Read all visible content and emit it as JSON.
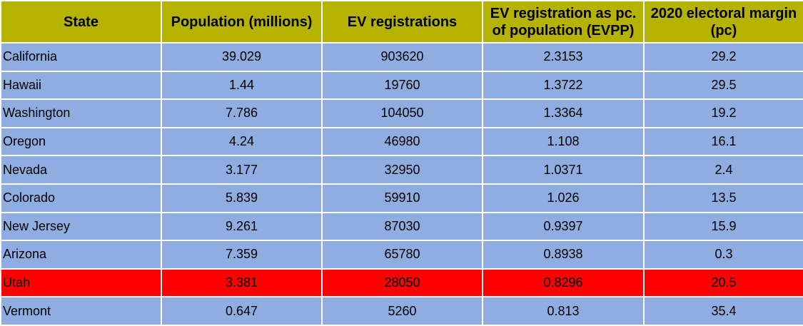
{
  "colors": {
    "header_bg": "#b5b300",
    "row_bg": "#8fade0",
    "highlight_bg": "#ff0000",
    "grid_line": "#ffffff",
    "text": "#000000"
  },
  "chart_data": {
    "type": "table",
    "columns": [
      "State",
      "Population (millions)",
      "EV registrations",
      "EV registration as pc. of population (EVPP)",
      "2020 electoral margin (pc)"
    ],
    "highlighted_row": "Utah",
    "rows": [
      [
        "California",
        "39.029",
        "903620",
        "2.3153",
        "29.2"
      ],
      [
        "Hawaii",
        "1.44",
        "19760",
        "1.3722",
        "29.5"
      ],
      [
        "Washington",
        "7.786",
        "104050",
        "1.3364",
        "19.2"
      ],
      [
        "Oregon",
        "4.24",
        "46980",
        "1.108",
        "16.1"
      ],
      [
        "Nevada",
        "3.177",
        "32950",
        "1.0371",
        "2.4"
      ],
      [
        "Colorado",
        "5.839",
        "59910",
        "1.026",
        "13.5"
      ],
      [
        "New Jersey",
        "9.261",
        "87030",
        "0.9397",
        "15.9"
      ],
      [
        "Arizona",
        "7.359",
        "65780",
        "0.8938",
        "0.3"
      ],
      [
        "Utah",
        "3.381",
        "28050",
        "0.8296",
        "20.5"
      ],
      [
        "Vermont",
        "0.647",
        "5260",
        "0.813",
        "35.4"
      ]
    ]
  }
}
